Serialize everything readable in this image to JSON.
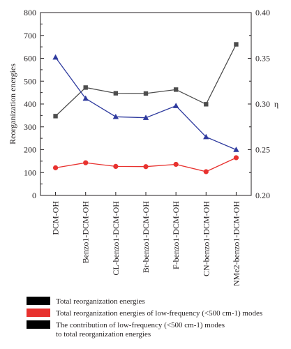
{
  "chart_data": {
    "type": "line",
    "categories": [
      "DCM-OH",
      "Benzo1-DCM-OH",
      "CL-benzo1-DCM-OH",
      "Br-benzo1-DCM-OH",
      "F-benzo1-DCM-OH",
      "CN-benzo1-DCM-OH",
      "NMe2-benzo1-DCM-OH"
    ],
    "ylabel": "Reorganization energies",
    "y2label": "η",
    "ylim": [
      0,
      800
    ],
    "y2lim": [
      0.2,
      0.4
    ],
    "yticks": [
      0,
      100,
      200,
      300,
      400,
      500,
      600,
      700,
      800
    ],
    "y2ticks": [
      0.2,
      0.25,
      0.3,
      0.35,
      0.4
    ],
    "ytick_labels": [
      "0",
      "100",
      "200",
      "300",
      "400",
      "500",
      "600",
      "700",
      "800"
    ],
    "y2tick_labels": [
      "0.20",
      "0.25",
      "0.30",
      "0.35",
      "0.40"
    ],
    "grid": false,
    "legend_position": "bottom",
    "series": [
      {
        "name": "Total reorganization energies",
        "axis": "left",
        "marker": "square",
        "color": "#4d4d4d",
        "values": [
          347,
          472,
          447,
          446,
          463,
          399,
          661
        ]
      },
      {
        "name": "Total reorganization energies of low-frequency (<500 cm-1) modes",
        "axis": "left",
        "marker": "circle",
        "color": "#e8322f",
        "values": [
          121,
          143,
          127,
          126,
          136,
          104,
          165
        ]
      },
      {
        "name": "The contribution of low-frequency (<500 cm-1) modes to total reorganization energies",
        "axis": "right",
        "marker": "triangle",
        "color": "#2e3a9e",
        "values": [
          0.351,
          0.306,
          0.286,
          0.285,
          0.298,
          0.264,
          0.25
        ]
      }
    ]
  },
  "legend": {
    "items": [
      {
        "swatch_color": "#000000",
        "lines": [
          "Total reorganization energies"
        ]
      },
      {
        "swatch_color": "#e8322f",
        "lines": [
          "Total reorganization energies of low-frequency (<500 cm-1) modes"
        ]
      },
      {
        "swatch_color": "#000000",
        "lines": [
          "The contribution of low-frequency (<500 cm-1) modes",
          "to total reorganization energies"
        ]
      }
    ]
  }
}
